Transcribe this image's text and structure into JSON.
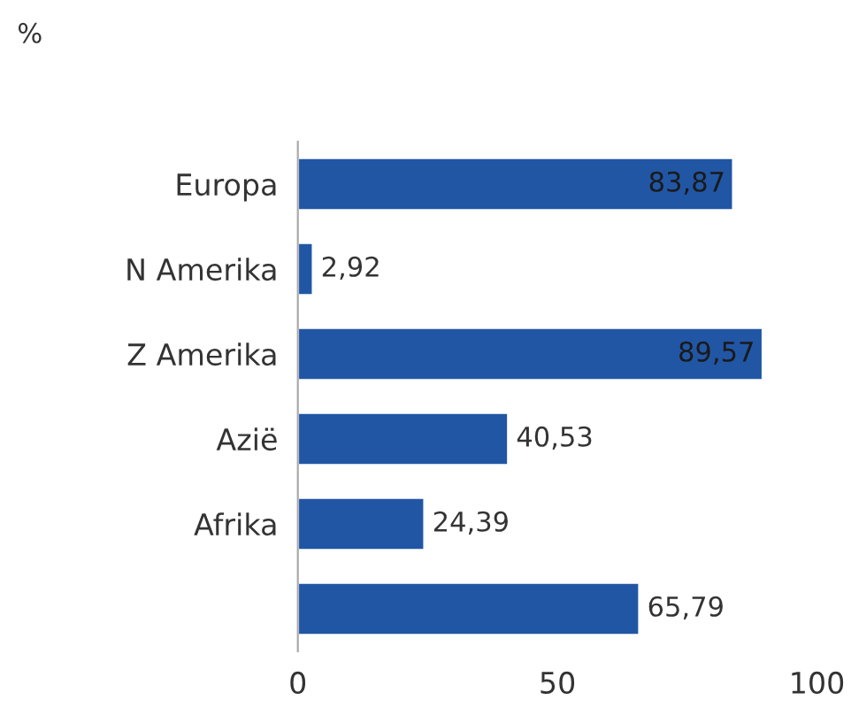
{
  "chart_data": {
    "type": "bar",
    "orientation": "horizontal",
    "xlabel": "%",
    "categories": [
      "Europa",
      "N Amerika",
      "Z Amerika",
      "Azië",
      "Afrika",
      null
    ],
    "values": [
      83.87,
      2.92,
      89.57,
      40.53,
      24.39,
      65.79
    ],
    "value_labels": [
      "83,87",
      "2,92",
      "89,57",
      "40,53",
      "24,39",
      "65,79"
    ],
    "color": "#2156a5",
    "xlim": [
      0,
      100
    ],
    "xticks": [
      0,
      50,
      100
    ],
    "grid": false,
    "legend": false
  }
}
